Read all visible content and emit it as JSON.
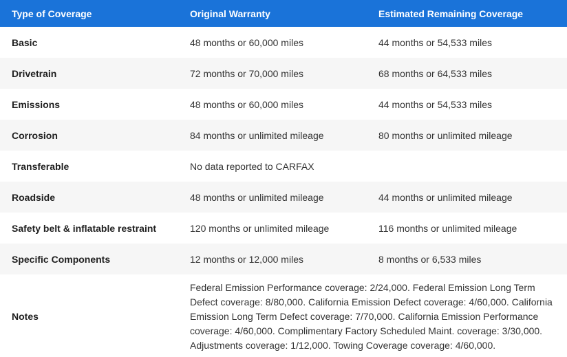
{
  "table": {
    "headers": {
      "type": "Type of Coverage",
      "original": "Original Warranty",
      "remaining": "Estimated Remaining Coverage"
    },
    "rows": [
      {
        "type": "Basic",
        "original": "48 months or 60,000 miles",
        "remaining": "44 months or 54,533 miles"
      },
      {
        "type": "Drivetrain",
        "original": "72 months or 70,000 miles",
        "remaining": "68 months or 64,533 miles"
      },
      {
        "type": "Emissions",
        "original": "48 months or 60,000 miles",
        "remaining": "44 months or 54,533 miles"
      },
      {
        "type": "Corrosion",
        "original": "84 months or unlimited mileage",
        "remaining": "80 months or unlimited mileage"
      },
      {
        "type": "Transferable",
        "original": "No data reported to CARFAX",
        "remaining": ""
      },
      {
        "type": "Roadside",
        "original": "48 months or unlimited mileage",
        "remaining": "44 months or unlimited mileage"
      },
      {
        "type": "Safety belt & inflatable restraint",
        "original": "120 months or unlimited mileage",
        "remaining": "116 months or unlimited mileage"
      },
      {
        "type": "Specific Components",
        "original": "12 months or 12,000 miles",
        "remaining": "8 months or 6,533 miles"
      }
    ],
    "notes": {
      "label": "Notes",
      "text": "Federal Emission Performance coverage: 2/24,000. Federal Emission Long Term Defect coverage: 8/80,000. California Emission Defect coverage: 4/60,000. California Emission Long Term Defect coverage: 7/70,000. California Emission Performance coverage: 4/60,000. Complimentary Factory Scheduled Maint. coverage: 3/30,000. Adjustments coverage: 1/12,000. Towing Coverage coverage: 4/60,000."
    },
    "colors": {
      "header_bg": "#1a73d9",
      "header_text": "#ffffff",
      "stripe_bg": "#f6f6f6"
    }
  }
}
